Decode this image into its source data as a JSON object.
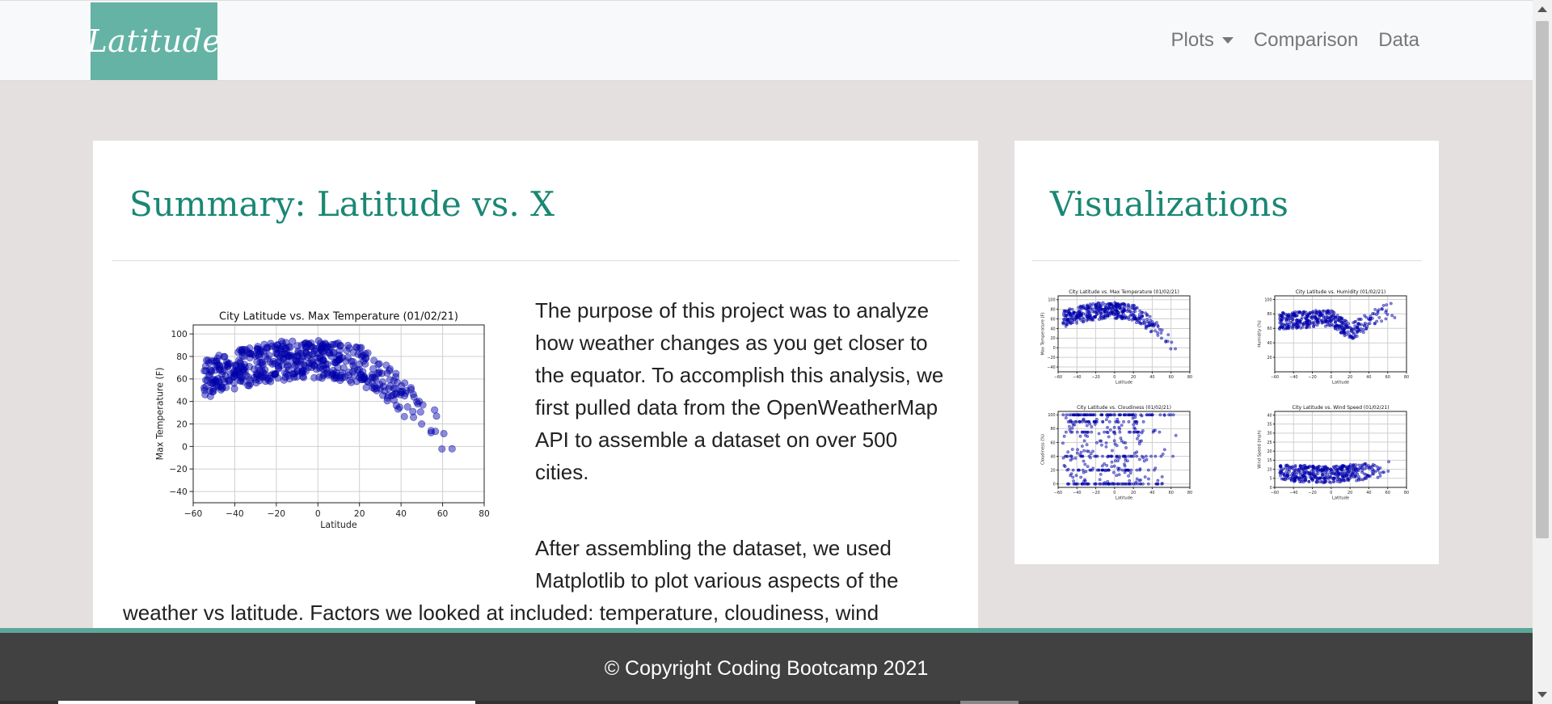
{
  "brand": {
    "label": "Latitude"
  },
  "nav": {
    "plots": "Plots",
    "comparison": "Comparison",
    "data": "Data"
  },
  "summary": {
    "heading": "Summary: Latitude vs. X",
    "para1": "The purpose of this project was to analyze how weather changes as you get closer to the equator. To accomplish this analysis, we first pulled data from the OpenWeatherMap API to assemble a dataset on over 500 cities.",
    "para2_part1": "After assembling the dataset, we used Matplotlib to plot various aspects of the",
    "para2_part2": "weather vs latitude. Factors we looked at included: temperature, cloudiness, wind"
  },
  "visualizations": {
    "heading": "Visualizations"
  },
  "footer": {
    "text": "© Copyright Coding Bootcamp 2021"
  },
  "chart_data": [
    {
      "type": "scatter",
      "title": "City Latitude vs. Max Temperature (01/02/21)",
      "xlabel": "Latitude",
      "ylabel": "Max Temperature (F)",
      "xlim": [
        -60,
        80
      ],
      "ylim": [
        -50,
        108
      ],
      "xticks": [
        -60,
        -40,
        -20,
        0,
        20,
        40,
        60,
        80
      ],
      "yticks": [
        -40,
        -20,
        0,
        20,
        40,
        60,
        80,
        100
      ],
      "grid": true,
      "color": "#0000aa",
      "trend": [
        [
          -55,
          60
        ],
        [
          -40,
          68
        ],
        [
          -20,
          76
        ],
        [
          0,
          78
        ],
        [
          20,
          72
        ],
        [
          30,
          62
        ],
        [
          40,
          45
        ],
        [
          50,
          30
        ],
        [
          60,
          12
        ],
        [
          70,
          -5
        ]
      ]
    },
    {
      "type": "scatter",
      "title": "City Latitude vs. Max Temperature (01/02/21)",
      "xlabel": "Latitude",
      "ylabel": "Max Temperature (F)",
      "xlim": [
        -60,
        80
      ],
      "ylim": [
        -50,
        108
      ],
      "xticks": [
        -60,
        -40,
        -20,
        0,
        20,
        40,
        60,
        80
      ],
      "yticks": [
        -40,
        -20,
        0,
        20,
        40,
        60,
        80,
        100
      ],
      "grid": true,
      "color": "#0000aa",
      "trend": [
        [
          -55,
          60
        ],
        [
          -40,
          68
        ],
        [
          -20,
          76
        ],
        [
          0,
          78
        ],
        [
          20,
          72
        ],
        [
          30,
          62
        ],
        [
          40,
          45
        ],
        [
          50,
          30
        ],
        [
          60,
          12
        ],
        [
          70,
          -5
        ]
      ]
    },
    {
      "type": "scatter",
      "title": "City Latitude vs. Humidity (01/02/21)",
      "xlabel": "Latitude",
      "ylabel": "Humidity (%)",
      "xlim": [
        -60,
        80
      ],
      "ylim": [
        0,
        105
      ],
      "xticks": [
        -60,
        -40,
        -20,
        0,
        20,
        40,
        60,
        80
      ],
      "yticks": [
        20,
        40,
        60,
        80,
        100
      ],
      "grid": true,
      "color": "#0000aa",
      "trend": [
        [
          -55,
          70
        ],
        [
          -30,
          72
        ],
        [
          0,
          75
        ],
        [
          20,
          55
        ],
        [
          40,
          70
        ],
        [
          60,
          85
        ],
        [
          75,
          80
        ]
      ]
    },
    {
      "type": "scatter",
      "title": "City Latitude vs. Cloudiness (01/02/21)",
      "xlabel": "Latitude",
      "ylabel": "Cloudiness (%)",
      "xlim": [
        -60,
        80
      ],
      "ylim": [
        -5,
        105
      ],
      "xticks": [
        -60,
        -40,
        -20,
        0,
        20,
        40,
        60,
        80
      ],
      "yticks": [
        0,
        20,
        40,
        60,
        80,
        100
      ],
      "grid": true,
      "color": "#0000aa",
      "trend": [
        [
          -55,
          50
        ],
        [
          0,
          50
        ],
        [
          75,
          50
        ]
      ]
    },
    {
      "type": "scatter",
      "title": "City Latitude vs. Wind Speed (01/02/21)",
      "xlabel": "Latitude",
      "ylabel": "Wind Speed (mph)",
      "xlim": [
        -60,
        80
      ],
      "ylim": [
        0,
        42
      ],
      "xticks": [
        -60,
        -40,
        -20,
        0,
        20,
        40,
        60,
        80
      ],
      "yticks": [
        0,
        5,
        10,
        15,
        20,
        25,
        30,
        35,
        40
      ],
      "grid": true,
      "color": "#0000aa",
      "trend": [
        [
          -55,
          8
        ],
        [
          0,
          7
        ],
        [
          40,
          9
        ],
        [
          75,
          10
        ]
      ]
    }
  ]
}
